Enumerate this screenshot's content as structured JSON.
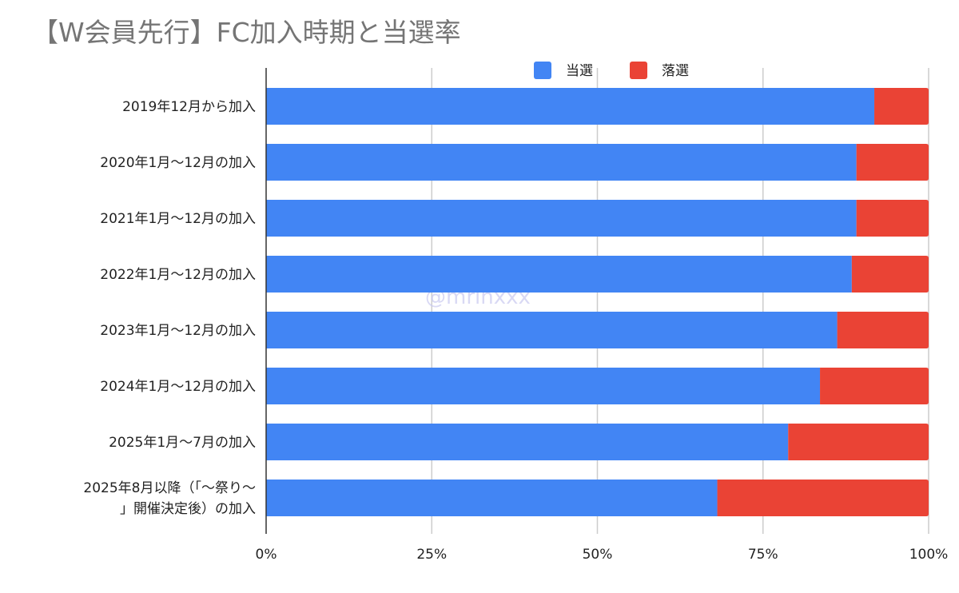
{
  "chart_data": {
    "type": "bar",
    "orientation": "horizontal",
    "stacked": "percent",
    "title": "【W会員先行】FC加入時期と当選率",
    "watermark": "@mrinxxx",
    "categories": [
      "2019年12月から加入",
      "2020年1月〜12月の加入",
      "2021年1月〜12月の加入",
      "2022年1月〜12月の加入",
      "2023年1月〜12月の加入",
      "2024年1月〜12月の加入",
      "2025年1月〜7月の加入",
      "2025年8月以降（「〜祭り〜」開催決定後）の加入"
    ],
    "category_lines": [
      [
        "2019年12月から加入"
      ],
      [
        "2020年1月〜12月の加入"
      ],
      [
        "2021年1月〜12月の加入"
      ],
      [
        "2022年1月〜12月の加入"
      ],
      [
        "2023年1月〜12月の加入"
      ],
      [
        "2024年1月〜12月の加入"
      ],
      [
        "2025年1月〜7月の加入"
      ],
      [
        "2025年8月以降（「〜祭り〜",
        "」開催決定後）の加入"
      ]
    ],
    "series": [
      {
        "name": "当選",
        "color": "#4285f4",
        "values": [
          91.8,
          89.1,
          89.1,
          88.4,
          86.2,
          83.6,
          78.8,
          68.1
        ]
      },
      {
        "name": "落選",
        "color": "#ea4335",
        "values": [
          8.2,
          10.9,
          10.9,
          11.6,
          13.8,
          16.4,
          21.2,
          31.9
        ]
      }
    ],
    "xlim": [
      0,
      100
    ],
    "xticks": [
      "0%",
      "25%",
      "50%",
      "75%",
      "100%"
    ],
    "grid": true,
    "legend": "top"
  }
}
